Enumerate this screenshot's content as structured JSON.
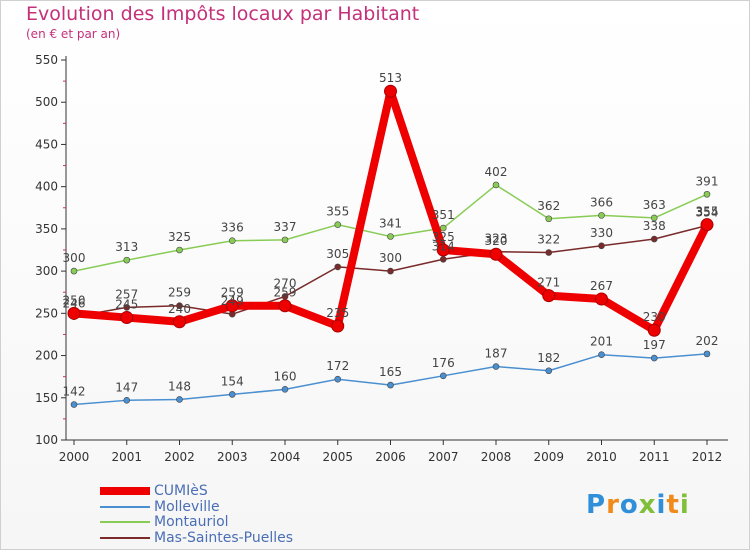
{
  "title": "Evolution des Impôts locaux par Habitant",
  "subtitle": "(en € et par an)",
  "logo_text": "Proxiti",
  "chart_data": {
    "type": "line",
    "title": "Evolution des Impôts locaux par Habitant",
    "subtitle": "(en € et par an)",
    "xlabel": "",
    "ylabel": "",
    "x": [
      "2000",
      "2001",
      "2002",
      "2003",
      "2004",
      "2005",
      "2006",
      "2007",
      "2008",
      "2009",
      "2010",
      "2011",
      "2012"
    ],
    "ylim": [
      100,
      550
    ],
    "yticks": [
      100,
      150,
      200,
      250,
      300,
      350,
      400,
      450,
      500,
      550
    ],
    "grid": false,
    "legend_position": "bottom-left",
    "series": [
      {
        "name": "CUMIèS",
        "color": "#ee0000",
        "values": [
          250,
          245,
          240,
          259,
          259,
          235,
          513,
          325,
          320,
          271,
          267,
          230,
          355
        ]
      },
      {
        "name": "Molleville",
        "color": "#4a8fd0",
        "values": [
          142,
          147,
          148,
          154,
          160,
          172,
          165,
          176,
          187,
          182,
          201,
          197,
          202
        ]
      },
      {
        "name": "Montauriol",
        "color": "#88cc55",
        "values": [
          300,
          313,
          325,
          336,
          337,
          355,
          341,
          351,
          402,
          362,
          366,
          363,
          391
        ]
      },
      {
        "name": "Mas-Saintes-Puelles",
        "color": "#7a2a2a",
        "values": [
          246,
          257,
          259,
          249,
          270,
          305,
          300,
          314,
          323,
          322,
          330,
          338,
          354
        ]
      }
    ]
  }
}
